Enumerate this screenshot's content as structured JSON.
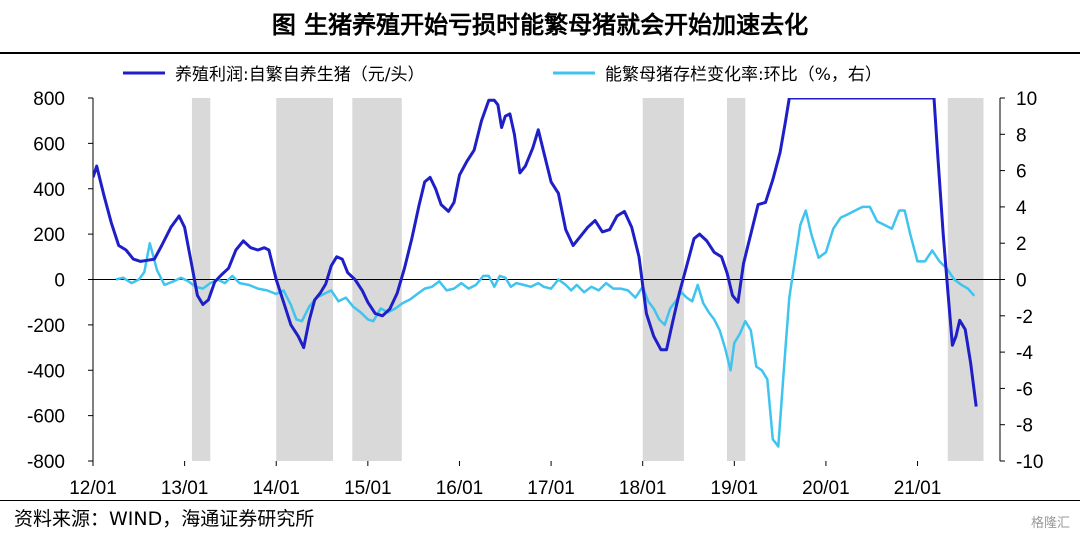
{
  "title": "图  生猪养殖开始亏损时能繁母猪就会开始加速去化",
  "source": "资料来源：WIND，海通证券研究所",
  "watermark": "格隆汇",
  "chart_data": {
    "type": "line",
    "title": "图  生猪养殖开始亏损时能繁母猪就会开始加速去化",
    "colors": {
      "profit": "#1f1fc8",
      "sows": "#3fc4ef",
      "shade": "#d9d9d9"
    },
    "x_range": [
      2012.0,
      2021.9
    ],
    "x_ticks": [
      {
        "label": "12/01",
        "x": 2012.0
      },
      {
        "label": "13/01",
        "x": 2013.0
      },
      {
        "label": "14/01",
        "x": 2014.0
      },
      {
        "label": "15/01",
        "x": 2015.0
      },
      {
        "label": "16/01",
        "x": 2016.0
      },
      {
        "label": "17/01",
        "x": 2017.0
      },
      {
        "label": "18/01",
        "x": 2018.0
      },
      {
        "label": "19/01",
        "x": 2019.0
      },
      {
        "label": "20/01",
        "x": 2020.0
      },
      {
        "label": "21/01",
        "x": 2021.0
      }
    ],
    "y_left": {
      "min": -800,
      "max": 800,
      "ticks": [
        800,
        600,
        400,
        200,
        0,
        -200,
        -400,
        -600,
        -800
      ]
    },
    "y_right": {
      "min": -10,
      "max": 10,
      "ticks": [
        10,
        8,
        6,
        4,
        2,
        0,
        -2,
        -4,
        -6,
        -8,
        -10
      ]
    },
    "shaded_periods": [
      [
        2013.08,
        2013.28
      ],
      [
        2014.0,
        2014.62
      ],
      [
        2014.83,
        2015.37
      ],
      [
        2018.0,
        2018.45
      ],
      [
        2018.92,
        2019.12
      ],
      [
        2021.33,
        2021.72
      ]
    ],
    "series": [
      {
        "name": "养殖利润:自繁自养生猪（元/头）",
        "axis": "left",
        "color_key": "profit",
        "points": [
          [
            2012.0,
            450
          ],
          [
            2012.04,
            500
          ],
          [
            2012.12,
            370
          ],
          [
            2012.2,
            250
          ],
          [
            2012.28,
            150
          ],
          [
            2012.36,
            130
          ],
          [
            2012.44,
            90
          ],
          [
            2012.52,
            80
          ],
          [
            2012.6,
            85
          ],
          [
            2012.67,
            90
          ],
          [
            2012.75,
            150
          ],
          [
            2012.85,
            230
          ],
          [
            2012.94,
            280
          ],
          [
            2013.0,
            230
          ],
          [
            2013.08,
            60
          ],
          [
            2013.14,
            -70
          ],
          [
            2013.2,
            -110
          ],
          [
            2013.26,
            -90
          ],
          [
            2013.33,
            -10
          ],
          [
            2013.4,
            20
          ],
          [
            2013.48,
            50
          ],
          [
            2013.56,
            130
          ],
          [
            2013.64,
            170
          ],
          [
            2013.72,
            140
          ],
          [
            2013.8,
            130
          ],
          [
            2013.87,
            140
          ],
          [
            2013.92,
            130
          ],
          [
            2014.0,
            0
          ],
          [
            2014.08,
            -100
          ],
          [
            2014.16,
            -200
          ],
          [
            2014.24,
            -250
          ],
          [
            2014.3,
            -300
          ],
          [
            2014.36,
            -180
          ],
          [
            2014.42,
            -90
          ],
          [
            2014.48,
            -60
          ],
          [
            2014.54,
            -20
          ],
          [
            2014.6,
            60
          ],
          [
            2014.66,
            100
          ],
          [
            2014.72,
            90
          ],
          [
            2014.78,
            30
          ],
          [
            2014.86,
            0
          ],
          [
            2014.94,
            -50
          ],
          [
            2015.0,
            -100
          ],
          [
            2015.08,
            -150
          ],
          [
            2015.16,
            -160
          ],
          [
            2015.24,
            -130
          ],
          [
            2015.32,
            -60
          ],
          [
            2015.4,
            50
          ],
          [
            2015.48,
            180
          ],
          [
            2015.56,
            330
          ],
          [
            2015.62,
            430
          ],
          [
            2015.68,
            450
          ],
          [
            2015.74,
            400
          ],
          [
            2015.8,
            330
          ],
          [
            2015.88,
            300
          ],
          [
            2015.94,
            340
          ],
          [
            2016.0,
            460
          ],
          [
            2016.08,
            520
          ],
          [
            2016.16,
            570
          ],
          [
            2016.24,
            700
          ],
          [
            2016.32,
            790
          ],
          [
            2016.38,
            790
          ],
          [
            2016.42,
            770
          ],
          [
            2016.46,
            670
          ],
          [
            2016.5,
            720
          ],
          [
            2016.55,
            730
          ],
          [
            2016.6,
            640
          ],
          [
            2016.66,
            470
          ],
          [
            2016.72,
            500
          ],
          [
            2016.8,
            580
          ],
          [
            2016.86,
            660
          ],
          [
            2016.92,
            560
          ],
          [
            2017.0,
            430
          ],
          [
            2017.08,
            380
          ],
          [
            2017.16,
            220
          ],
          [
            2017.24,
            150
          ],
          [
            2017.32,
            190
          ],
          [
            2017.4,
            230
          ],
          [
            2017.48,
            260
          ],
          [
            2017.56,
            210
          ],
          [
            2017.64,
            220
          ],
          [
            2017.72,
            280
          ],
          [
            2017.8,
            300
          ],
          [
            2017.88,
            230
          ],
          [
            2017.96,
            100
          ],
          [
            2018.04,
            -150
          ],
          [
            2018.12,
            -250
          ],
          [
            2018.2,
            -310
          ],
          [
            2018.26,
            -310
          ],
          [
            2018.32,
            -200
          ],
          [
            2018.4,
            -60
          ],
          [
            2018.48,
            60
          ],
          [
            2018.56,
            180
          ],
          [
            2018.62,
            200
          ],
          [
            2018.7,
            170
          ],
          [
            2018.78,
            120
          ],
          [
            2018.86,
            100
          ],
          [
            2018.92,
            30
          ],
          [
            2018.98,
            -70
          ],
          [
            2019.04,
            -100
          ],
          [
            2019.1,
            70
          ],
          [
            2019.18,
            200
          ],
          [
            2019.26,
            330
          ],
          [
            2019.34,
            340
          ],
          [
            2019.42,
            440
          ],
          [
            2019.5,
            560
          ],
          [
            2019.56,
            700
          ],
          [
            2019.6,
            800
          ],
          [
            2021.18,
            800
          ],
          [
            2021.22,
            550
          ],
          [
            2021.28,
            200
          ],
          [
            2021.33,
            -50
          ],
          [
            2021.38,
            -290
          ],
          [
            2021.42,
            -250
          ],
          [
            2021.46,
            -180
          ],
          [
            2021.52,
            -220
          ],
          [
            2021.58,
            -370
          ],
          [
            2021.64,
            -560
          ]
        ]
      },
      {
        "name": "能繁母猪存栏变化率:环比（%，右）",
        "axis": "right",
        "color_key": "sows",
        "points": [
          [
            2012.25,
            0.0
          ],
          [
            2012.33,
            0.1
          ],
          [
            2012.42,
            -0.2
          ],
          [
            2012.5,
            0.0
          ],
          [
            2012.56,
            0.4
          ],
          [
            2012.62,
            2.0
          ],
          [
            2012.7,
            0.5
          ],
          [
            2012.78,
            -0.3
          ],
          [
            2012.88,
            -0.1
          ],
          [
            2012.96,
            0.1
          ],
          [
            2013.04,
            -0.1
          ],
          [
            2013.12,
            -0.4
          ],
          [
            2013.2,
            -0.5
          ],
          [
            2013.28,
            -0.2
          ],
          [
            2013.36,
            0.0
          ],
          [
            2013.44,
            -0.2
          ],
          [
            2013.52,
            0.2
          ],
          [
            2013.6,
            -0.2
          ],
          [
            2013.7,
            -0.3
          ],
          [
            2013.8,
            -0.5
          ],
          [
            2013.9,
            -0.6
          ],
          [
            2014.0,
            -0.8
          ],
          [
            2014.08,
            -0.6
          ],
          [
            2014.16,
            -1.4
          ],
          [
            2014.22,
            -2.2
          ],
          [
            2014.28,
            -2.3
          ],
          [
            2014.36,
            -1.5
          ],
          [
            2014.44,
            -1.0
          ],
          [
            2014.52,
            -0.8
          ],
          [
            2014.6,
            -0.6
          ],
          [
            2014.68,
            -1.2
          ],
          [
            2014.76,
            -1.0
          ],
          [
            2014.84,
            -1.5
          ],
          [
            2014.92,
            -1.8
          ],
          [
            2015.0,
            -2.2
          ],
          [
            2015.06,
            -2.3
          ],
          [
            2015.14,
            -1.6
          ],
          [
            2015.22,
            -1.8
          ],
          [
            2015.3,
            -1.6
          ],
          [
            2015.38,
            -1.3
          ],
          [
            2015.46,
            -1.1
          ],
          [
            2015.54,
            -0.8
          ],
          [
            2015.62,
            -0.5
          ],
          [
            2015.7,
            -0.4
          ],
          [
            2015.78,
            -0.1
          ],
          [
            2015.86,
            -0.6
          ],
          [
            2015.94,
            -0.5
          ],
          [
            2016.02,
            -0.2
          ],
          [
            2016.1,
            -0.5
          ],
          [
            2016.18,
            -0.3
          ],
          [
            2016.26,
            0.2
          ],
          [
            2016.32,
            0.2
          ],
          [
            2016.38,
            -0.4
          ],
          [
            2016.44,
            0.2
          ],
          [
            2016.5,
            0.1
          ],
          [
            2016.56,
            -0.4
          ],
          [
            2016.62,
            -0.2
          ],
          [
            2016.7,
            -0.3
          ],
          [
            2016.78,
            -0.4
          ],
          [
            2016.86,
            -0.2
          ],
          [
            2016.92,
            -0.4
          ],
          [
            2017.0,
            -0.5
          ],
          [
            2017.08,
            0.0
          ],
          [
            2017.16,
            -0.3
          ],
          [
            2017.22,
            -0.6
          ],
          [
            2017.28,
            -0.3
          ],
          [
            2017.36,
            -0.7
          ],
          [
            2017.44,
            -0.4
          ],
          [
            2017.52,
            -0.6
          ],
          [
            2017.6,
            -0.2
          ],
          [
            2017.68,
            -0.5
          ],
          [
            2017.76,
            -0.5
          ],
          [
            2017.84,
            -0.6
          ],
          [
            2017.92,
            -1.0
          ],
          [
            2018.0,
            -0.4
          ],
          [
            2018.06,
            -1.2
          ],
          [
            2018.12,
            -1.6
          ],
          [
            2018.18,
            -2.2
          ],
          [
            2018.24,
            -2.5
          ],
          [
            2018.3,
            -1.6
          ],
          [
            2018.36,
            -1.2
          ],
          [
            2018.42,
            -0.7
          ],
          [
            2018.48,
            -1.0
          ],
          [
            2018.54,
            -1.2
          ],
          [
            2018.6,
            -0.3
          ],
          [
            2018.66,
            -1.3
          ],
          [
            2018.72,
            -1.8
          ],
          [
            2018.78,
            -2.2
          ],
          [
            2018.84,
            -2.8
          ],
          [
            2018.9,
            -3.8
          ],
          [
            2018.96,
            -5.0
          ],
          [
            2019.0,
            -3.5
          ],
          [
            2019.06,
            -3.0
          ],
          [
            2019.12,
            -2.3
          ],
          [
            2019.18,
            -2.8
          ],
          [
            2019.24,
            -4.8
          ],
          [
            2019.3,
            -5.0
          ],
          [
            2019.36,
            -5.5
          ],
          [
            2019.42,
            -8.8
          ],
          [
            2019.48,
            -9.2
          ],
          [
            2019.54,
            -5.0
          ],
          [
            2019.6,
            -1.0
          ],
          [
            2019.66,
            1.0
          ],
          [
            2019.72,
            3.0
          ],
          [
            2019.78,
            3.8
          ],
          [
            2019.84,
            2.5
          ],
          [
            2019.92,
            1.2
          ],
          [
            2020.0,
            1.5
          ],
          [
            2020.08,
            2.8
          ],
          [
            2020.16,
            3.4
          ],
          [
            2020.24,
            3.6
          ],
          [
            2020.32,
            3.8
          ],
          [
            2020.4,
            4.0
          ],
          [
            2020.48,
            4.0
          ],
          [
            2020.56,
            3.2
          ],
          [
            2020.64,
            3.0
          ],
          [
            2020.72,
            2.8
          ],
          [
            2020.8,
            3.8
          ],
          [
            2020.86,
            3.8
          ],
          [
            2020.92,
            2.5
          ],
          [
            2021.0,
            1.0
          ],
          [
            2021.08,
            1.0
          ],
          [
            2021.16,
            1.6
          ],
          [
            2021.24,
            1.0
          ],
          [
            2021.32,
            0.6
          ],
          [
            2021.4,
            0.0
          ],
          [
            2021.48,
            -0.3
          ],
          [
            2021.55,
            -0.5
          ],
          [
            2021.62,
            -0.9
          ]
        ]
      }
    ]
  }
}
